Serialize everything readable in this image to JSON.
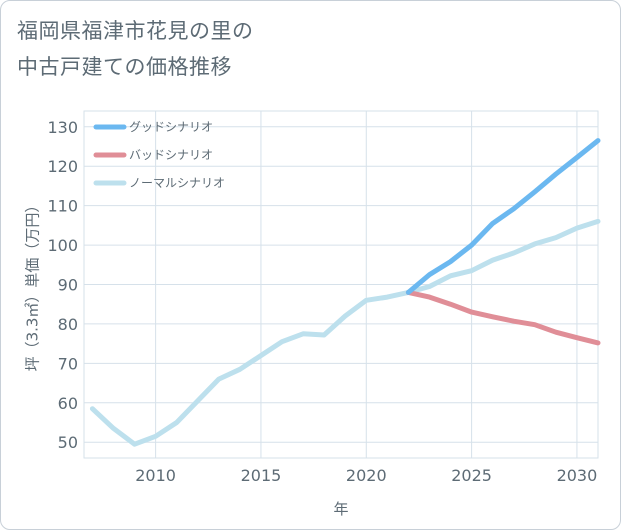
{
  "chart_data": {
    "type": "line",
    "title_lines": [
      "福岡県福津市花見の里の",
      "中古戸建ての価格推移"
    ],
    "xlabel": "年",
    "ylabel": "坪（3.3㎡）単価（万円）",
    "xlim": [
      2006.6,
      2031
    ],
    "ylim": [
      46,
      134
    ],
    "x_ticks": [
      2010,
      2015,
      2020,
      2025,
      2030
    ],
    "y_ticks": [
      50,
      60,
      70,
      80,
      90,
      100,
      110,
      120,
      130
    ],
    "grid": true,
    "legend_position": "top-left",
    "series": [
      {
        "name": "グッドシナリオ",
        "color": "#6bb8f0",
        "x": [
          2022,
          2023,
          2024,
          2025,
          2026,
          2027,
          2028,
          2029,
          2030,
          2031
        ],
        "y": [
          88,
          92.5,
          95.8,
          100,
          105.5,
          109.2,
          113.5,
          118,
          122.2,
          126.5
        ]
      },
      {
        "name": "バッドシナリオ",
        "color": "#e08e97",
        "x": [
          2022,
          2023,
          2024,
          2025,
          2026,
          2027,
          2028,
          2029,
          2030,
          2031
        ],
        "y": [
          88,
          86.8,
          85,
          83,
          81.8,
          80.7,
          79.8,
          77.9,
          76.5,
          75.2
        ]
      },
      {
        "name": "ノーマルシナリオ",
        "color": "#bde0ed",
        "x": [
          2007,
          2008,
          2009,
          2010,
          2011,
          2012,
          2013,
          2014,
          2015,
          2016,
          2017,
          2018,
          2019,
          2020,
          2021,
          2022,
          2023,
          2024,
          2025,
          2026,
          2027,
          2028,
          2029,
          2030,
          2031
        ],
        "y": [
          58.5,
          53.5,
          49.5,
          51.5,
          55,
          60.5,
          66,
          68.5,
          72,
          75.5,
          77.5,
          77.2,
          82,
          86,
          86.8,
          88,
          89.5,
          92.2,
          93.5,
          96.2,
          98,
          100.3,
          101.9,
          104.3,
          106
        ]
      }
    ]
  }
}
